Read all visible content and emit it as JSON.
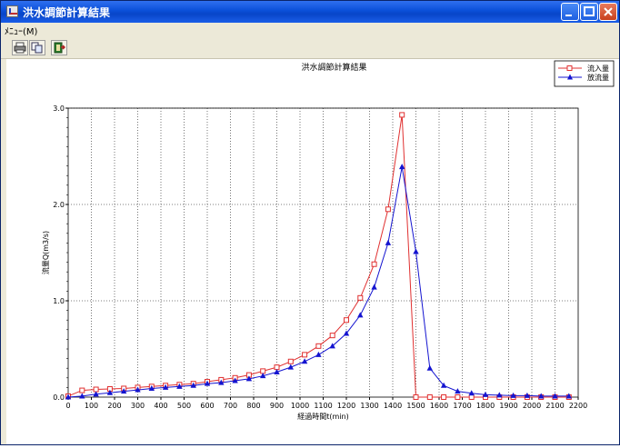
{
  "window": {
    "title": "洪水調節計算結果"
  },
  "menu": {
    "label": "ﾒﾆｭｰ(M)"
  },
  "toolbar": {
    "icons": [
      "printer-icon",
      "copy-icon",
      "exit-icon"
    ]
  },
  "chart_data": {
    "type": "line",
    "title": "洪水調節計算結果",
    "xlabel": "経過時間t(min)",
    "ylabel": "流量Q(m3/s)",
    "xlim": [
      0,
      2200
    ],
    "ylim": [
      0,
      3.0
    ],
    "x_ticks": [
      "0",
      "100",
      "200",
      "300",
      "400",
      "500",
      "600",
      "700",
      "800",
      "900",
      "1000",
      "1100",
      "1200",
      "1300",
      "1400",
      "1500",
      "1600",
      "1700",
      "1800",
      "1900",
      "2000",
      "2100",
      "2200"
    ],
    "y_ticks": [
      "0.0",
      "1.0",
      "2.0",
      "3.0"
    ],
    "grid": true,
    "legend_position": "top-right",
    "series": [
      {
        "name": "流入量",
        "color": "#e03030",
        "marker": "square-open",
        "x": [
          0,
          60,
          120,
          180,
          240,
          300,
          360,
          420,
          480,
          540,
          600,
          660,
          720,
          780,
          840,
          900,
          960,
          1020,
          1080,
          1140,
          1200,
          1260,
          1320,
          1380,
          1440,
          1500,
          1560,
          1620,
          1680,
          1740,
          1800,
          1860,
          1920,
          1980,
          2040,
          2100,
          2160
        ],
        "y": [
          0.01,
          0.07,
          0.08,
          0.085,
          0.09,
          0.1,
          0.11,
          0.12,
          0.13,
          0.14,
          0.16,
          0.18,
          0.2,
          0.23,
          0.27,
          0.31,
          0.37,
          0.44,
          0.53,
          0.64,
          0.8,
          1.03,
          1.38,
          1.95,
          2.93,
          0.0,
          0.0,
          0.0,
          0.0,
          0.0,
          0.0,
          0.0,
          0.0,
          0.0,
          0.0,
          0.0,
          0.0
        ]
      },
      {
        "name": "放流量",
        "color": "#1414d0",
        "marker": "triangle-filled",
        "x": [
          0,
          60,
          120,
          180,
          240,
          300,
          360,
          420,
          480,
          540,
          600,
          660,
          720,
          780,
          840,
          900,
          960,
          1020,
          1080,
          1140,
          1200,
          1260,
          1320,
          1380,
          1440,
          1500,
          1560,
          1620,
          1680,
          1740,
          1800,
          1860,
          1920,
          1980,
          2040,
          2100,
          2160
        ],
        "y": [
          0.0,
          0.01,
          0.03,
          0.045,
          0.06,
          0.075,
          0.09,
          0.1,
          0.11,
          0.12,
          0.14,
          0.15,
          0.17,
          0.19,
          0.22,
          0.26,
          0.31,
          0.37,
          0.44,
          0.53,
          0.66,
          0.85,
          1.14,
          1.6,
          2.39,
          1.51,
          0.3,
          0.12,
          0.06,
          0.04,
          0.025,
          0.02,
          0.015,
          0.015,
          0.01,
          0.01,
          0.01
        ]
      }
    ]
  }
}
